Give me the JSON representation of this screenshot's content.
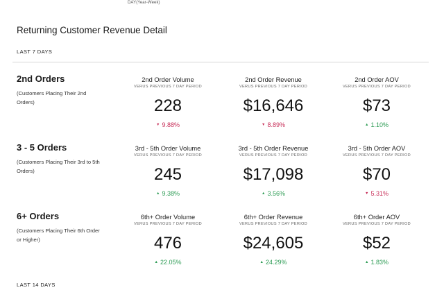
{
  "top_note": "DAY(Year-Week)",
  "title": "Returning Customer Revenue Detail",
  "periods": {
    "last7": "LAST 7 DAYS",
    "last14": "LAST 14 DAYS"
  },
  "colors": {
    "down": "#c8305a",
    "up": "#2e9c55"
  },
  "rows": [
    {
      "title": "2nd Orders",
      "sub": "(Customers Placing Their 2nd Orders)",
      "metrics": [
        {
          "label": "2nd Order Volume",
          "sub": "VERUS PREVIOUS 7 DAY PERIOD",
          "value": "228",
          "change": "9.88%",
          "direction": "down",
          "arrow": "▼"
        },
        {
          "label": "2nd Order Revenue",
          "sub": "VERUS PREVIOUS 7 DAY PERIOD",
          "value": "$16,646",
          "change": "8.89%",
          "direction": "down",
          "arrow": "▼"
        },
        {
          "label": "2nd Order AOV",
          "sub": "VERUS PREVIOUS 7 DAY PERIOD",
          "value": "$73",
          "change": "1.10%",
          "direction": "up",
          "arrow": "▲"
        }
      ]
    },
    {
      "title": "3 - 5 Orders",
      "sub": "(Customers Placing Their 3rd to 5th Orders)",
      "metrics": [
        {
          "label": "3rd - 5th Order Volume",
          "sub": "VERUS PREVIOUS 7 DAY PERIOD",
          "value": "245",
          "change": "9.38%",
          "direction": "up",
          "arrow": "▲"
        },
        {
          "label": "3rd - 5th Order Revenue",
          "sub": "VERUS PREVIOUS 7 DAY PERIOD",
          "value": "$17,098",
          "change": "3.56%",
          "direction": "up",
          "arrow": "▲"
        },
        {
          "label": "3rd - 5th Order AOV",
          "sub": "VERUS PREVIOUS 7 DAY PERIOD",
          "value": "$70",
          "change": "5.31%",
          "direction": "down",
          "arrow": "▼"
        }
      ]
    },
    {
      "title": "6+ Orders",
      "sub": "(Customers Placing Their 6th Order or Higher)",
      "metrics": [
        {
          "label": "6th+ Order Volume",
          "sub": "VERUS PREVIOUS 7 DAY PERIOD",
          "value": "476",
          "change": "22.05%",
          "direction": "up",
          "arrow": "▲"
        },
        {
          "label": "6th+ Order Revenue",
          "sub": "VERUS PREVIOUS 7 DAY PERIOD",
          "value": "$24,605",
          "change": "24.29%",
          "direction": "up",
          "arrow": "▲"
        },
        {
          "label": "6th+ Order AOV",
          "sub": "VERUS PREVIOUS 7 DAY PERIOD",
          "value": "$52",
          "change": "1.83%",
          "direction": "up",
          "arrow": "▲"
        }
      ]
    }
  ]
}
